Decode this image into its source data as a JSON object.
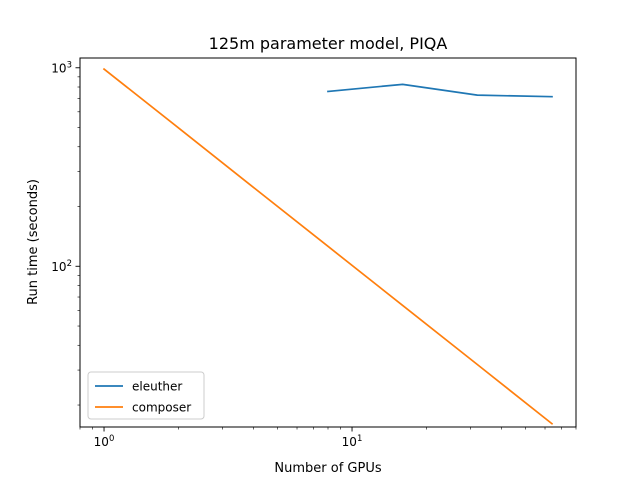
{
  "chart_data": {
    "type": "line",
    "title": "125m parameter model, PIQA",
    "xlabel": "Number of GPUs",
    "ylabel": "Run time (seconds)",
    "xscale": "log",
    "yscale": "log",
    "xlim": [
      0.8,
      80
    ],
    "ylim": [
      15.5,
      1120
    ],
    "xticks": [
      {
        "value": 1,
        "base": "10",
        "exp": "0"
      },
      {
        "value": 10,
        "base": "10",
        "exp": "1"
      }
    ],
    "yticks": [
      {
        "value": 100,
        "base": "10",
        "exp": "2"
      },
      {
        "value": 1000,
        "base": "10",
        "exp": "3"
      }
    ],
    "grid": false,
    "legend_position": "lower-left",
    "series": [
      {
        "name": "eleuther",
        "color": "#1f77b4",
        "x": [
          8,
          16,
          32,
          64
        ],
        "y": [
          760,
          825,
          728,
          715
        ]
      },
      {
        "name": "composer",
        "color": "#ff7f0e",
        "x": [
          1,
          2,
          4,
          8,
          16,
          32,
          64
        ],
        "y": [
          985,
          497,
          250,
          126,
          63.5,
          32,
          16.1
        ]
      }
    ]
  }
}
